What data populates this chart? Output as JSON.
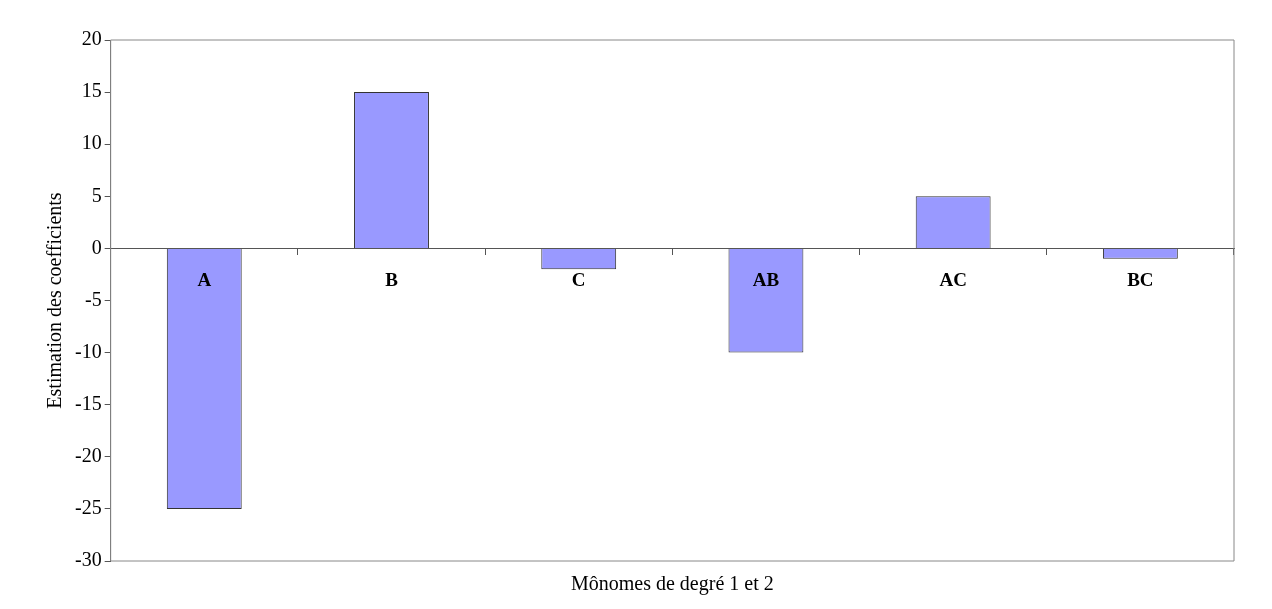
{
  "chart_data": {
    "type": "bar",
    "xlabel": "Mônomes de degré 1 et 2",
    "ylabel": "Estimation des coefficients",
    "categories": [
      "A",
      "B",
      "C",
      "AB",
      "AC",
      "BC"
    ],
    "values": [
      -25,
      15,
      -2,
      -10,
      5,
      -1
    ],
    "color": "#9999ff",
    "ylim": [
      -30,
      20
    ],
    "yticks": [
      -30,
      -25,
      -20,
      -15,
      -10,
      -5,
      0,
      5,
      10,
      15,
      20
    ],
    "grid": false,
    "legend": false
  }
}
